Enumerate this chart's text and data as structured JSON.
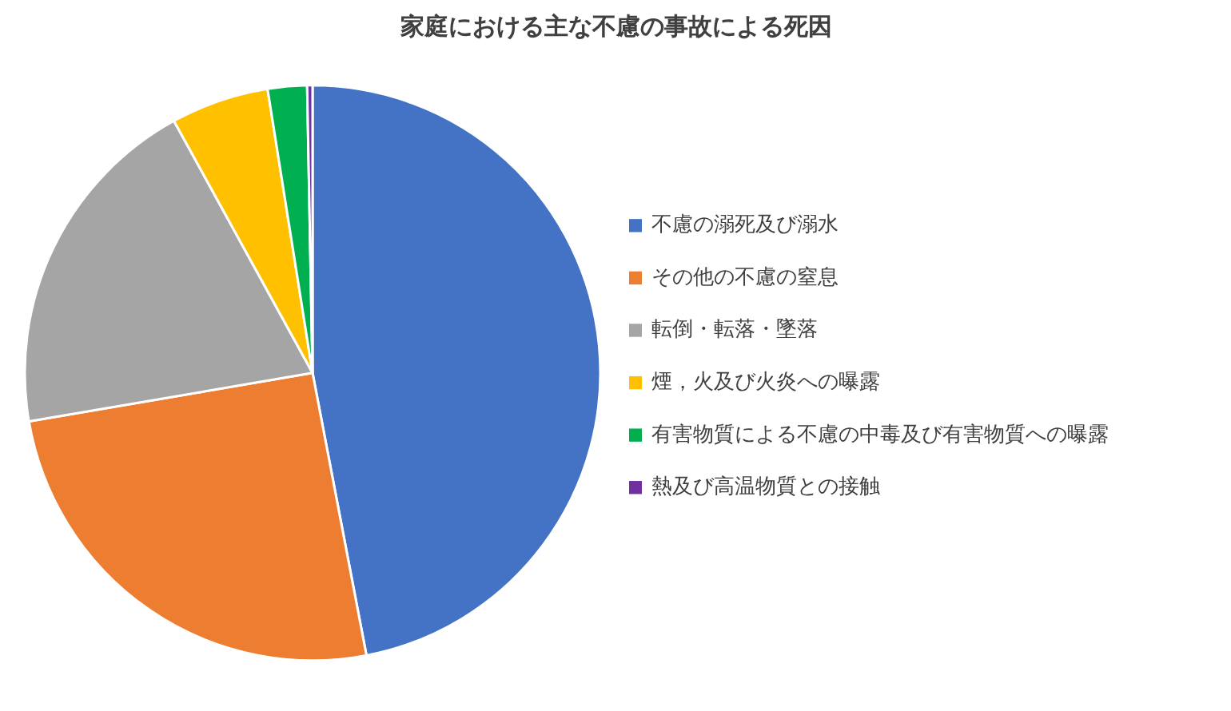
{
  "chart_data": {
    "type": "pie",
    "title": "家庭における主な不慮の事故による死因",
    "categories": [
      "不慮の溺死及び溺水",
      "その他の不慮の窒息",
      "転倒・転落・墜落",
      "煙，火及び火炎への曝露",
      "有害物質による不慮の中毒及び有害物質への曝露",
      "熱及び高温物質との接触"
    ],
    "values": [
      47.0,
      25.3,
      19.7,
      5.5,
      2.2,
      0.3
    ],
    "colors": [
      "#4472c4",
      "#ed7d31",
      "#a5a5a5",
      "#ffc000",
      "#00b050",
      "#7030a0"
    ],
    "legend": "right"
  }
}
